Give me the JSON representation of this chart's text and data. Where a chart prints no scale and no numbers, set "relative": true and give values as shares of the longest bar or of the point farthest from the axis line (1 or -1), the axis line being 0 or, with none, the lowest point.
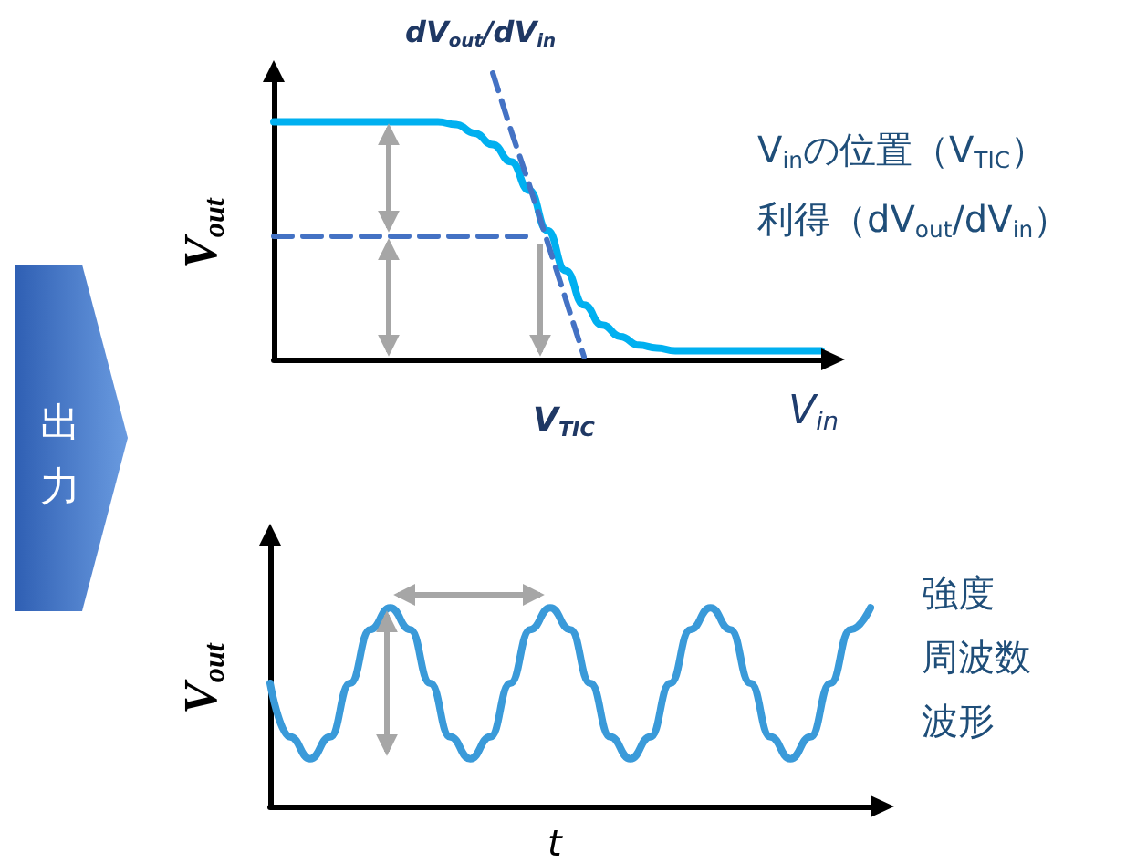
{
  "chart_data": [
    {
      "type": "line",
      "relative": true,
      "marker": "none",
      "xlabel": "V$_{in}$",
      "ylabel": "V$_{out}$",
      "annotations": [
        "dV$_{out}$/dV$_{in}$",
        "V$_{TIC}$",
        "V$_{in}$の位置（V$_{TIC}$）",
        "利得（dV$_{out}$/dV$_{in}$）",
        "出力"
      ],
      "categories": [
        null,
        null,
        null,
        null,
        null,
        null,
        null,
        null,
        null,
        null,
        null,
        null,
        null,
        null,
        null,
        null,
        null,
        null,
        null,
        null,
        null,
        null,
        null,
        null,
        null,
        null,
        null,
        null,
        null,
        null,
        null
      ],
      "series": [
        {
          "color": "#00b0f0",
          "values": [
            0.83,
            0.83,
            0.83,
            0.83,
            0.83,
            0.83,
            0.83,
            0.83,
            0.83,
            0.83,
            0.82,
            0.79,
            0.75,
            0.69,
            0.59,
            0.45,
            0.31,
            0.19,
            0.12,
            0.08,
            0.05,
            0.04,
            0.03,
            0.03,
            0.03,
            0.03,
            0.03,
            0.03,
            0.03,
            0.03,
            0.03
          ]
        },
        {
          "color": "#4472c4",
          "line_style": "dashed",
          "values": [
            null,
            null,
            null,
            null,
            null,
            null,
            null,
            null,
            null,
            null,
            null,
            null,
            1,
            0.8,
            0.61,
            0.41,
            0.21,
            0.01,
            null,
            null,
            null,
            null,
            null,
            null,
            null,
            null,
            null,
            null,
            null,
            null,
            null
          ]
        },
        {
          "color": "#4472c4",
          "line_style": "dashed",
          "values": [
            0.43,
            0.43,
            0.43,
            0.43,
            0.43,
            0.43,
            0.43,
            0.43,
            0.43,
            0.43,
            0.43,
            0.43,
            0.43,
            0.43,
            0.43,
            null,
            null,
            null,
            null,
            null,
            null,
            null,
            null,
            null,
            null,
            null,
            null,
            null,
            null,
            null,
            null
          ]
        }
      ]
    },
    {
      "type": "line",
      "relative": true,
      "marker": "none",
      "xlabel": "t",
      "ylabel": "V$_{out}$",
      "annotations": [
        "強度",
        "周波数",
        "波形"
      ],
      "categories": [
        null,
        null,
        null,
        null,
        null,
        null,
        null,
        null,
        null,
        null,
        null,
        null,
        null,
        null,
        null,
        null,
        null,
        null,
        null,
        null,
        null,
        null,
        null,
        null,
        null,
        null,
        null,
        null,
        null,
        null,
        null
      ],
      "series": [
        {
          "color": "#3a9ad9",
          "values": [
            0.62,
            0.35,
            0.24,
            0.35,
            0.62,
            0.89,
            1,
            0.89,
            0.62,
            0.35,
            0.24,
            0.35,
            0.62,
            0.89,
            1,
            0.89,
            0.62,
            0.35,
            0.24,
            0.35,
            0.62,
            0.89,
            1,
            0.89,
            0.62,
            0.35,
            0.24,
            0.35,
            0.62,
            0.89,
            1
          ]
        }
      ]
    }
  ]
}
